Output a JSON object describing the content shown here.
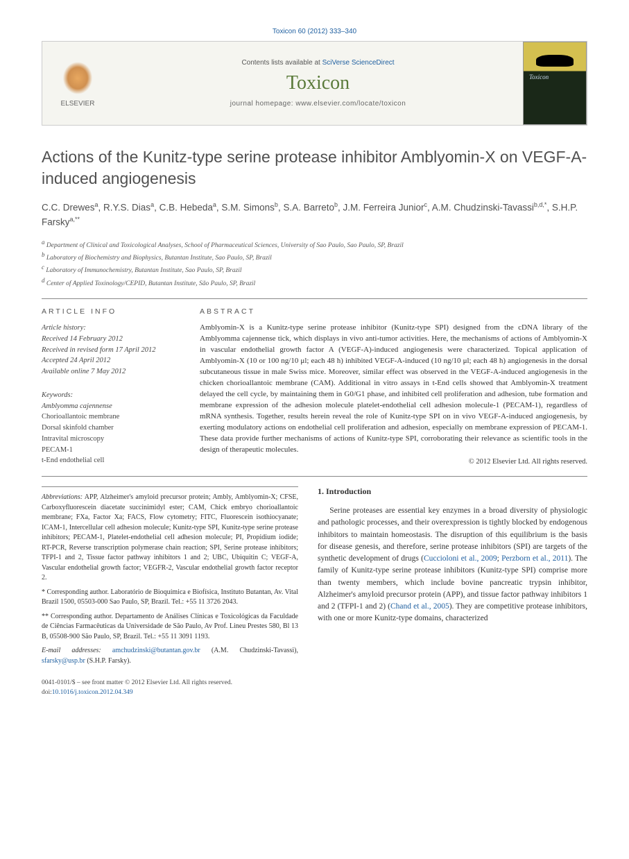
{
  "header": {
    "citation": "Toxicon 60 (2012) 333–340",
    "contents_prefix": "Contents lists available at ",
    "contents_link": "SciVerse ScienceDirect",
    "journal_name": "Toxicon",
    "homepage_prefix": "journal homepage: ",
    "homepage_url": "www.elsevier.com/locate/toxicon",
    "elsevier_label": "ELSEVIER"
  },
  "article": {
    "title": "Actions of the Kunitz-type serine protease inhibitor Amblyomin-X on VEGF-A-induced angiogenesis",
    "authors_html": "C.C. Drewes<sup>a</sup>, R.Y.S. Dias<sup>a</sup>, C.B. Hebeda<sup>a</sup>, S.M. Simons<sup>b</sup>, S.A. Barreto<sup>b</sup>, J.M. Ferreira Junior<sup>c</sup>, A.M. Chudzinski-Tavassi<sup>b,d,*</sup>, S.H.P. Farsky<sup>a,**</sup>",
    "affiliations": [
      "a Department of Clinical and Toxicological Analyses, School of Pharmaceutical Sciences, University of Sao Paulo, Sao Paulo, SP, Brazil",
      "b Laboratory of Biochemistry and Biophysics, Butantan Institute, Sao Paulo, SP, Brazil",
      "c Laboratory of Immunochemistry, Butantan Institute, Sao Paulo, SP, Brazil",
      "d Center of Applied Toxinology/CEPID, Butantan Institute, São Paulo, SP, Brazil"
    ]
  },
  "info": {
    "heading": "ARTICLE INFO",
    "history_label": "Article history:",
    "history": [
      "Received 14 February 2012",
      "Received in revised form 17 April 2012",
      "Accepted 24 April 2012",
      "Available online 7 May 2012"
    ],
    "keywords_label": "Keywords:",
    "keywords": [
      "Amblyomma cajennense",
      "Chorioallantoic membrane",
      "Dorsal skinfold chamber",
      "Intravital microscopy",
      "PECAM-1",
      "t-End endothelial cell"
    ]
  },
  "abstract": {
    "heading": "ABSTRACT",
    "text": "Amblyomin-X is a Kunitz-type serine protease inhibitor (Kunitz-type SPI) designed from the cDNA library of the Amblyomma cajennense tick, which displays in vivo anti-tumor activities. Here, the mechanisms of actions of Amblyomin-X in vascular endothelial growth factor A (VEGF-A)-induced angiogenesis were characterized. Topical application of Amblyomin-X (10 or 100 ng/10 μl; each 48 h) inhibited VEGF-A-induced (10 ng/10 μl; each 48 h) angiogenesis in the dorsal subcutaneous tissue in male Swiss mice. Moreover, similar effect was observed in the VEGF-A-induced angiogenesis in the chicken chorioallantoic membrane (CAM). Additional in vitro assays in t-End cells showed that Amblyomin-X treatment delayed the cell cycle, by maintaining them in G0/G1 phase, and inhibited cell proliferation and adhesion, tube formation and membrane expression of the adhesion molecule platelet-endothelial cell adhesion molecule-1 (PECAM-1), regardless of mRNA synthesis. Together, results herein reveal the role of Kunitz-type SPI on in vivo VEGF-A-induced angiogenesis, by exerting modulatory actions on endothelial cell proliferation and adhesion, especially on membrane expression of PECAM-1. These data provide further mechanisms of actions of Kunitz-type SPI, corroborating their relevance as scientific tools in the design of therapeutic molecules.",
    "copyright": "© 2012 Elsevier Ltd. All rights reserved."
  },
  "footnotes": {
    "abbrev_label": "Abbreviations:",
    "abbrev_text": "APP, Alzheimer's amyloid precursor protein; Ambly, Amblyomin-X; CFSE, Carboxyfluorescein diacetate succinimidyl ester; CAM, Chick embryo chorioallantoic membrane; FXa, Factor Xa; FACS, Flow cytometry; FITC, Fluorescein isothiocyanate; ICAM-1, Intercellular cell adhesion molecule; Kunitz-type SPI, Kunitz-type serine protease inhibitors; PECAM-1, Platelet-endothelial cell adhesion molecule; PI, Propidium iodide; RT-PCR, Reverse transcription polymerase chain reaction; SPI, Serine protease inhibitors; TFPI-1 and 2, Tissue factor pathway inhibitors 1 and 2; UBC, Ubiquitin C; VEGF-A, Vascular endothelial growth factor; VEGFR-2, Vascular endothelial growth factor receptor 2.",
    "corr1": "* Corresponding author. Laboratório de Bioquímica e Biofísica, Instituto Butantan, Av. Vital Brazil 1500, 05503-000 Sao Paulo, SP, Brazil. Tel.: +55 11 3726 2043.",
    "corr2": "** Corresponding author. Departamento de Análises Clínicas e Toxicológicas da Faculdade de Ciências Farmacêuticas da Universidade de São Paulo, Av Prof. Lineu Prestes 580, Bl 13 B, 05508-900 São Paulo, SP, Brazil. Tel.: +55 11 3091 1193.",
    "email_label": "E-mail addresses:",
    "email1": "amchudzinski@butantan.gov.br",
    "email1_name": "(A.M. Chudzinski-Tavassi),",
    "email2": "sfarsky@usp.br",
    "email2_name": "(S.H.P. Farsky)."
  },
  "intro": {
    "heading": "1. Introduction",
    "para1": "Serine proteases are essential key enzymes in a broad diversity of physiologic and pathologic processes, and their overexpression is tightly blocked by endogenous inhibitors to maintain homeostasis. The disruption of this equilibrium is the basis for disease genesis, and therefore, serine protease inhibitors (SPI) are targets of the synthetic development of drugs (Cuccioloni et al., 2009; Perzborn et al., 2011). The family of Kunitz-type serine protease inhibitors (Kunitz-type SPI) comprise more than twenty members, which include bovine pancreatic trypsin inhibitor, Alzheimer's amyloid precursor protein (APP), and tissue factor pathway inhibitors 1 and 2 (TFPI-1 and 2) (Chand et al., 2005). They are competitive protease inhibitors, with one or more Kunitz-type domains, characterized"
  },
  "footer": {
    "issn_line": "0041-0101/$ – see front matter © 2012 Elsevier Ltd. All rights reserved.",
    "doi_label": "doi:",
    "doi": "10.1016/j.toxicon.2012.04.349"
  }
}
